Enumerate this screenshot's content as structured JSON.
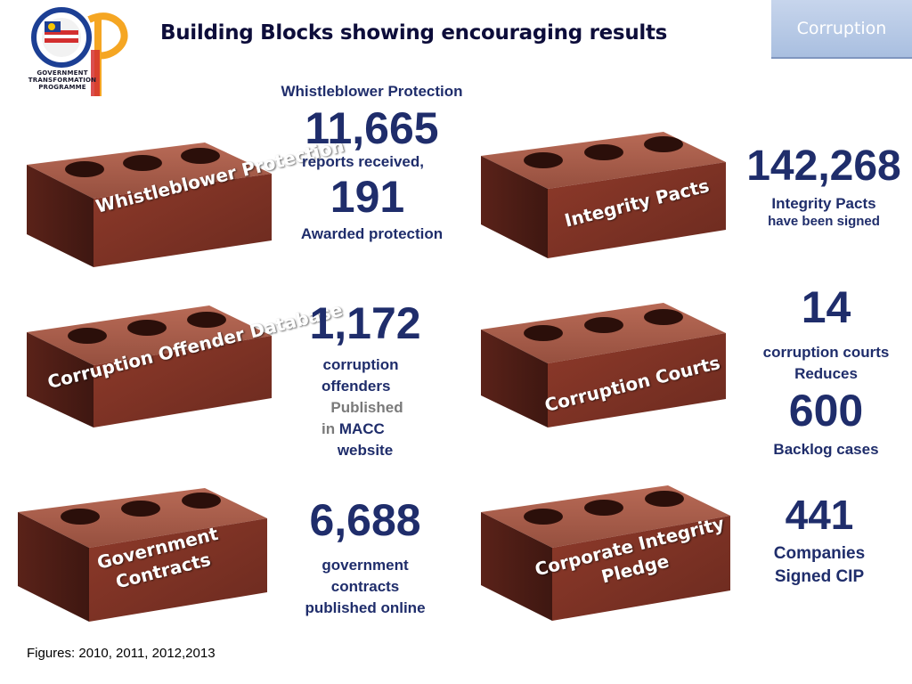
{
  "header": {
    "title": "Building Blocks showing encouraging results",
    "tab_label": "Corruption",
    "logo_text_line1": "GOVERNMENT",
    "logo_text_line2": "TRANSFORMATION",
    "logo_text_line3": "PROGRAMME"
  },
  "bricks": {
    "whistleblower": "Whistleblower Protection",
    "integrity_pacts": "Integrity Pacts",
    "offender_database": "Corruption Offender Database",
    "courts": "Corruption Courts",
    "contracts": "Government Contracts",
    "cip": "Corporate Integrity Pledge"
  },
  "stats": {
    "whistleblower": {
      "heading": "Whistleblower Protection",
      "reports": "11,665",
      "reports_label": "reports received,",
      "awarded": "191",
      "awarded_label": "Awarded protection"
    },
    "integrity_pacts": {
      "value": "142,268",
      "label_line1": "Integrity Pacts",
      "label_line2": "have been signed"
    },
    "offenders": {
      "value": "1,172",
      "line1": "corruption",
      "line2": "offenders",
      "line3": "Published",
      "line4_prefix": "in",
      "line4_macc": "MACC",
      "line5": "website"
    },
    "courts": {
      "value": "14",
      "line1": "corruption courts",
      "line2": "Reduces",
      "backlog": "600",
      "backlog_label": "Backlog cases"
    },
    "contracts": {
      "value": "6,688",
      "line1": "government",
      "line2": "contracts",
      "line3": "published online"
    },
    "cip": {
      "value": "441",
      "line1": "Companies",
      "line2": "Signed CIP"
    }
  },
  "footer": "Figures: 2010, 2011, 2012,2013",
  "colors": {
    "navy": "#1f2d6b",
    "brick": "#8e3a2a",
    "tab": "#b7c9e6"
  }
}
